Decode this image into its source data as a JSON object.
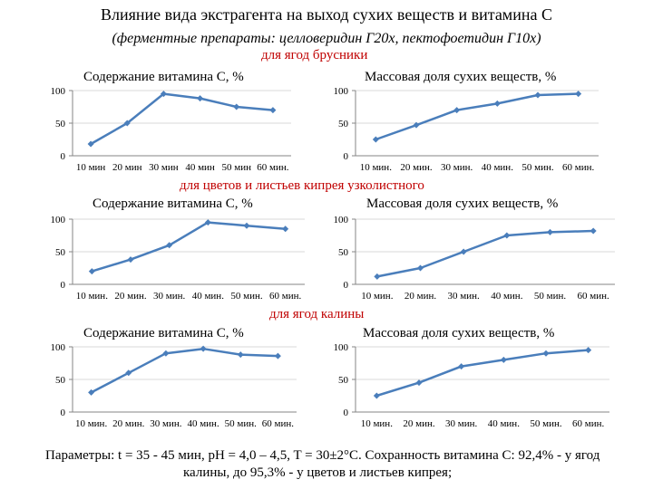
{
  "title": "Влияние вида экстрагента на  выход сухих веществ и витамина С",
  "subtitle": "(ферментные препараты: целловеридин Г20х, пектофоетидин Г10х)",
  "sections": [
    "для ягод брусники",
    "для цветов и листьев кипрея узколистного",
    "для ягод калины"
  ],
  "footer": {
    "line1": "Параметры: t = 35 - 45 мин, pH = 4,0 – 4,5, T = 30±2°C. Сохранность витамина С: 92,4% - у ягод",
    "line2": "калины, до 95,3% - у цветов и листьев кипрея;"
  },
  "colors": {
    "series": "#4a7ebb",
    "section": "#c00000",
    "axis": "#868686"
  },
  "chart_data": [
    {
      "type": "line",
      "group": "для ягод брусники",
      "title": "Содержание витамина С, %",
      "categories": [
        "10 мин",
        "20 мин",
        "30 мин",
        "40 мин",
        "50 мин",
        "60 мин."
      ],
      "values": [
        18,
        50,
        95,
        88,
        75,
        70
      ],
      "ylim": [
        0,
        100
      ],
      "yticks": [
        "0",
        "50",
        "100"
      ]
    },
    {
      "type": "line",
      "group": "для ягод брусники",
      "title": "Массовая доля сухих веществ, %",
      "categories": [
        "10 мин.",
        "20 мин.",
        "30 мин.",
        "40 мин.",
        "50 мин.",
        "60 мин."
      ],
      "values": [
        25,
        47,
        70,
        80,
        93,
        95
      ],
      "ylim": [
        0,
        100
      ],
      "yticks": [
        "0",
        "50",
        "100"
      ]
    },
    {
      "type": "line",
      "group": "для цветов и листьев кипрея узколистного",
      "title": "Содержание витамина С, %",
      "categories": [
        "10 мин.",
        "20 мин.",
        "30 мин.",
        "40 мин.",
        "50 мин.",
        "60 мин."
      ],
      "values": [
        20,
        38,
        60,
        95,
        90,
        85
      ],
      "ylim": [
        0,
        100
      ],
      "yticks": [
        "0",
        "50",
        "100"
      ]
    },
    {
      "type": "line",
      "group": "для цветов и листьев кипрея узколистного",
      "title": "Массовая доля сухих веществ, %",
      "categories": [
        "10 мин.",
        "20 мин.",
        "30 мин.",
        "40 мин.",
        "50 мин.",
        "60 мин."
      ],
      "values": [
        12,
        25,
        50,
        75,
        80,
        82
      ],
      "ylim": [
        0,
        100
      ],
      "yticks": [
        "0",
        "50",
        "100"
      ]
    },
    {
      "type": "line",
      "group": "для ягод калины",
      "title": "Содержание витамина С, %",
      "categories": [
        "10 мин.",
        "20 мин.",
        "30 мин.",
        "40 мин.",
        "50 мин.",
        "60 мин."
      ],
      "values": [
        30,
        60,
        90,
        97,
        88,
        86
      ],
      "ylim": [
        0,
        100
      ],
      "yticks": [
        "0",
        "50",
        "100"
      ]
    },
    {
      "type": "line",
      "group": "для ягод калины",
      "title": "Массовая доля сухих веществ, %",
      "categories": [
        "10 мин.",
        "20 мин.",
        "30 мин.",
        "40 мин.",
        "50 мин.",
        "60 мин."
      ],
      "values": [
        25,
        45,
        70,
        80,
        90,
        95
      ],
      "ylim": [
        0,
        100
      ],
      "yticks": [
        "0",
        "50",
        "100"
      ]
    }
  ]
}
